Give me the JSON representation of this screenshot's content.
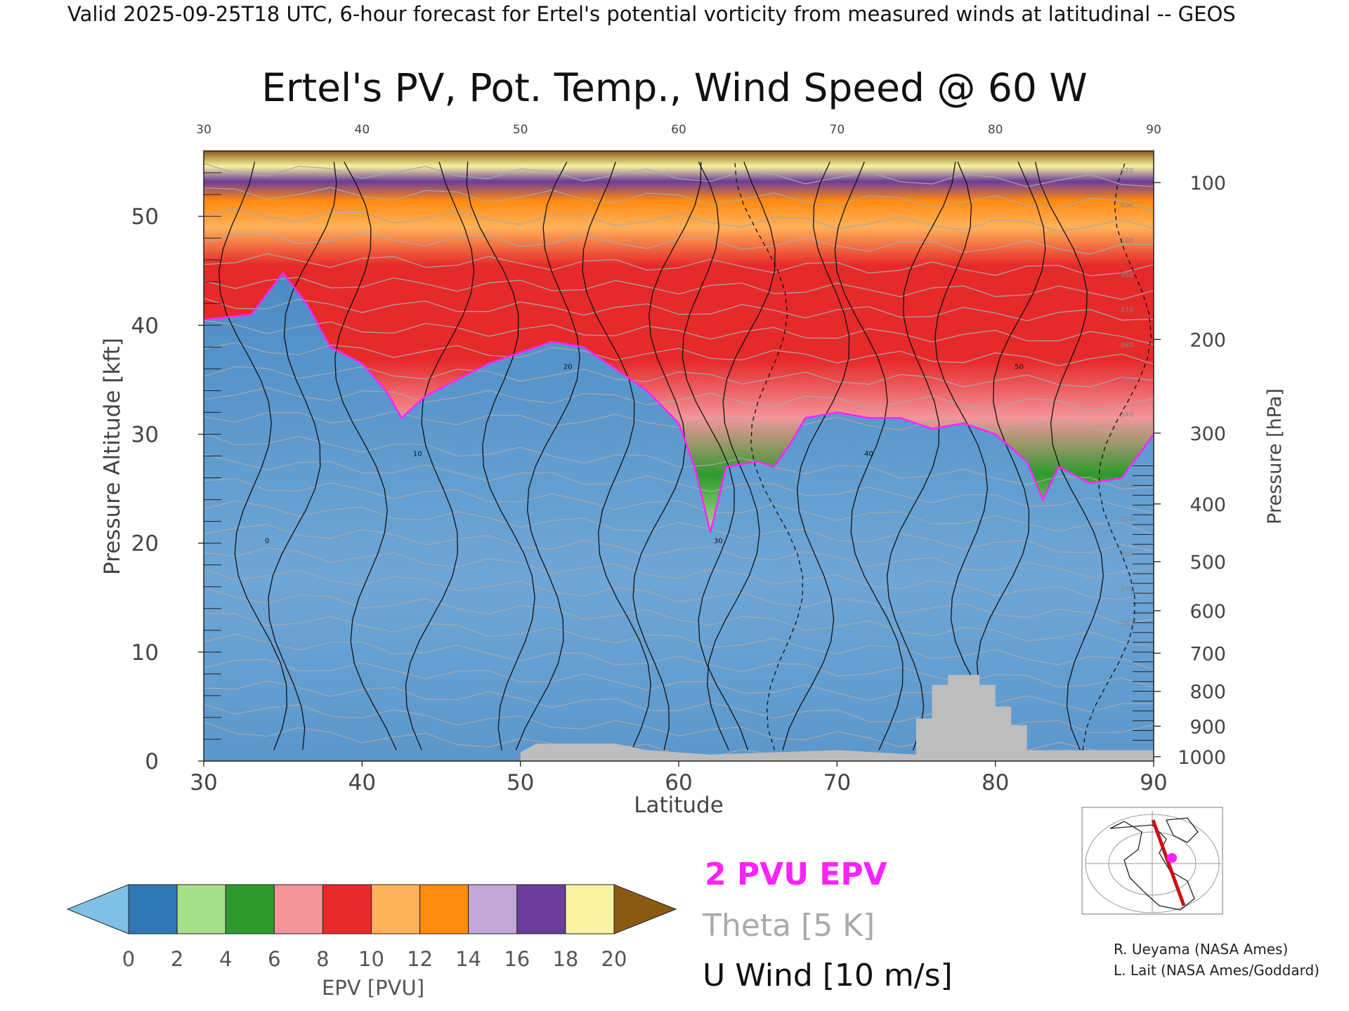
{
  "header": {
    "valid_line": "Valid 2025-09-25T18 UTC, 6-hour forecast for Ertel's potential vorticity from measured winds at latitudinal -- GEOS"
  },
  "chart_data": {
    "type": "heatmap",
    "title": "Ertel's PV, Pot. Temp., Wind Speed @ 60 W",
    "xlabel": "Latitude",
    "ylabel_left": "Pressure Altitude [kft]",
    "ylabel_right": "Pressure [hPa]",
    "xlim": [
      30,
      90
    ],
    "ylim": [
      0,
      56
    ],
    "x_ticks": [
      30,
      40,
      50,
      60,
      70,
      80,
      90
    ],
    "top_ticks": [
      30,
      40,
      50,
      60,
      70,
      80,
      90
    ],
    "y_ticks": [
      0,
      10,
      20,
      30,
      40,
      50
    ],
    "pressure_ticks": [
      {
        "hpa": "100",
        "kft": 53.1
      },
      {
        "hpa": "200",
        "kft": 38.7
      },
      {
        "hpa": "300",
        "kft": 30.1
      },
      {
        "hpa": "400",
        "kft": 23.6
      },
      {
        "hpa": "500",
        "kft": 18.3
      },
      {
        "hpa": "600",
        "kft": 13.8
      },
      {
        "hpa": "700",
        "kft": 9.9
      },
      {
        "hpa": "800",
        "kft": 6.4
      },
      {
        "hpa": "900",
        "kft": 3.2
      },
      {
        "hpa": "1000",
        "kft": 0.4
      }
    ],
    "tropopause_2pvu_kft": [
      [
        30,
        40.5
      ],
      [
        33,
        41.0
      ],
      [
        35,
        44.8
      ],
      [
        36.5,
        42.0
      ],
      [
        38,
        38.0
      ],
      [
        40,
        36.5
      ],
      [
        41.5,
        34.0
      ],
      [
        42.5,
        31.5
      ],
      [
        44,
        33.5
      ],
      [
        46,
        35.0
      ],
      [
        48,
        36.5
      ],
      [
        50,
        37.5
      ],
      [
        52,
        38.5
      ],
      [
        54,
        38.0
      ],
      [
        56,
        36.0
      ],
      [
        58,
        34.0
      ],
      [
        60,
        31.0
      ],
      [
        61,
        27.0
      ],
      [
        62,
        21.0
      ],
      [
        63,
        27.0
      ],
      [
        65,
        27.5
      ],
      [
        66,
        27.0
      ],
      [
        67,
        29.0
      ],
      [
        68,
        31.5
      ],
      [
        70,
        32.0
      ],
      [
        72,
        31.5
      ],
      [
        74,
        31.5
      ],
      [
        76,
        30.5
      ],
      [
        78,
        31.0
      ],
      [
        80,
        30.0
      ],
      [
        82,
        27.5
      ],
      [
        83,
        24.0
      ],
      [
        84,
        27.0
      ],
      [
        86,
        25.5
      ],
      [
        88,
        26.0
      ],
      [
        90,
        30.0
      ]
    ],
    "surface_terrain_kft": [
      [
        50,
        0
      ],
      [
        50,
        0.8
      ],
      [
        51,
        1.6
      ],
      [
        56,
        1.6
      ],
      [
        58,
        1.0
      ],
      [
        62,
        0.6
      ],
      [
        70,
        1.0
      ],
      [
        75,
        0.6
      ],
      [
        75,
        3.9
      ],
      [
        76,
        3.9
      ],
      [
        76,
        7.0
      ],
      [
        77,
        7.0
      ],
      [
        77,
        7.9
      ],
      [
        79,
        7.9
      ],
      [
        79,
        7.0
      ],
      [
        80,
        7.0
      ],
      [
        80,
        5.0
      ],
      [
        81,
        5.0
      ],
      [
        81,
        3.3
      ],
      [
        82,
        3.3
      ],
      [
        82,
        1.0
      ],
      [
        90,
        1.0
      ],
      [
        90,
        0
      ]
    ],
    "theta_label_values": [
      "420",
      "400",
      "390",
      "380",
      "370",
      "360",
      "350",
      "340",
      "330",
      "320",
      "310",
      "300",
      "290",
      "280"
    ],
    "uwind_label_values": [
      "0",
      "10",
      "20",
      "30",
      "40",
      "50"
    ],
    "colorbar": {
      "label": "EPV [PVU]",
      "ticks": [
        "0",
        "2",
        "4",
        "6",
        "8",
        "10",
        "12",
        "14",
        "16",
        "18",
        "20"
      ],
      "bins": [
        "#7ec0e6",
        "#2f77b5",
        "#a7e08a",
        "#2d9a2d",
        "#f3959b",
        "#e62a2a",
        "#ffb25a",
        "#ff8a10",
        "#c3a7d8",
        "#6a3d9a",
        "#f7f3a0",
        "#8a5a12"
      ]
    },
    "legend": [
      {
        "label": "2 PVU EPV",
        "color": "#ff22ff"
      },
      {
        "label": "Theta [5 K]",
        "color": "#aaaaaa"
      },
      {
        "label": "U Wind [10 m/s]",
        "color": "#111111"
      }
    ]
  },
  "credits": {
    "line1": "R. Ueyama (NASA Ames)",
    "line2": "L. Lait (NASA Ames/Goddard)"
  }
}
